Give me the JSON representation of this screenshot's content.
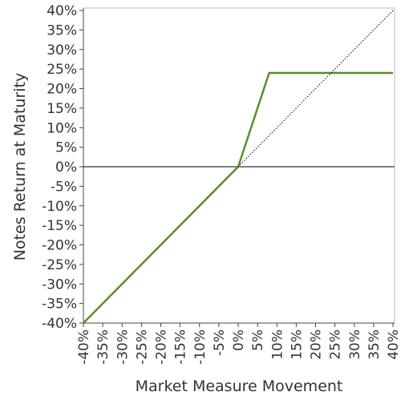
{
  "chart_data": {
    "type": "line",
    "x_label": "Market Measure Movement",
    "y_label": "Notes Return at Maturity",
    "xlim": [
      -40,
      40
    ],
    "ylim": [
      -40,
      40
    ],
    "xticks": [
      {
        "value": -40,
        "label": "-40%"
      },
      {
        "value": -35,
        "label": "-35%"
      },
      {
        "value": -30,
        "label": "-30%"
      },
      {
        "value": -25,
        "label": "-25%"
      },
      {
        "value": -20,
        "label": "-20%"
      },
      {
        "value": -15,
        "label": "-15%"
      },
      {
        "value": -10,
        "label": "-10%"
      },
      {
        "value": -5,
        "label": "-5%"
      },
      {
        "value": 0,
        "label": "0%"
      },
      {
        "value": 5,
        "label": "5%"
      },
      {
        "value": 10,
        "label": "10%"
      },
      {
        "value": 15,
        "label": "15%"
      },
      {
        "value": 20,
        "label": "20%"
      },
      {
        "value": 25,
        "label": "25%"
      },
      {
        "value": 30,
        "label": "30%"
      },
      {
        "value": 35,
        "label": "35%"
      },
      {
        "value": 40,
        "label": "40%"
      }
    ],
    "yticks": [
      {
        "value": -40,
        "label": "-40%"
      },
      {
        "value": -35,
        "label": "-35%"
      },
      {
        "value": -30,
        "label": "-30%"
      },
      {
        "value": -25,
        "label": "-25%"
      },
      {
        "value": -20,
        "label": "-20%"
      },
      {
        "value": -15,
        "label": "-15%"
      },
      {
        "value": -10,
        "label": "-10%"
      },
      {
        "value": -5,
        "label": "-5%"
      },
      {
        "value": 0,
        "label": "0%"
      },
      {
        "value": 5,
        "label": "5%"
      },
      {
        "value": 10,
        "label": "10%"
      },
      {
        "value": 15,
        "label": "15%"
      },
      {
        "value": 20,
        "label": "20%"
      },
      {
        "value": 25,
        "label": "25%"
      },
      {
        "value": 30,
        "label": "30%"
      },
      {
        "value": 35,
        "label": "35%"
      },
      {
        "value": 40,
        "label": "40%"
      }
    ],
    "zero_line": true,
    "series": [
      {
        "color": "#5b8c2a",
        "x": [
          -40,
          0,
          8,
          40
        ],
        "values": [
          -40,
          0,
          24,
          24
        ]
      },
      {
        "color": "#000000",
        "style": "dotted",
        "x": [
          0,
          40
        ],
        "values": [
          0,
          40
        ]
      }
    ]
  }
}
